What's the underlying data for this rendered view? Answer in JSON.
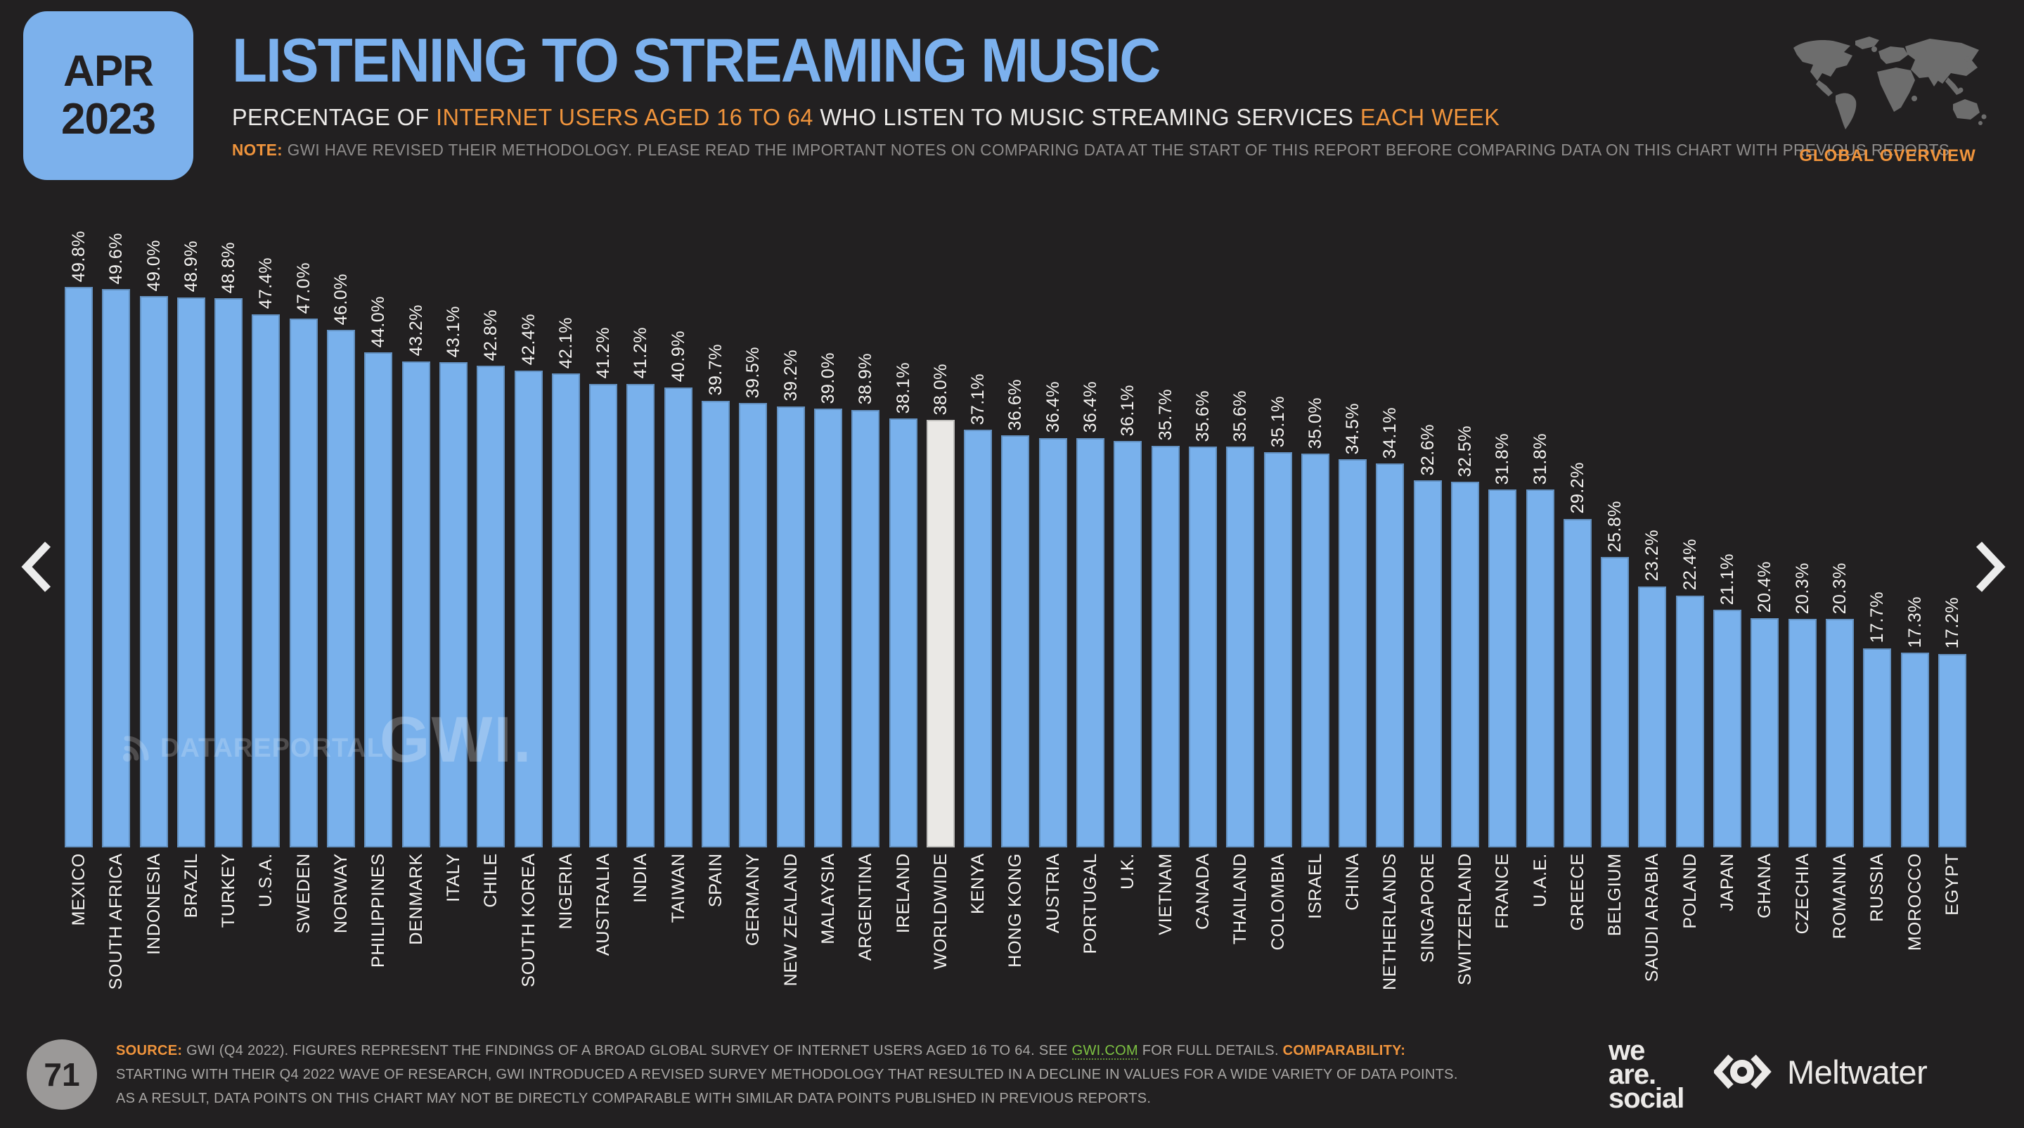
{
  "page": {
    "month_label": "APR",
    "year_label": "2023",
    "page_number": "71"
  },
  "header": {
    "title": "LISTENING TO STREAMING MUSIC",
    "subtitle": {
      "part1": "PERCENTAGE OF ",
      "highlight1": "INTERNET USERS AGED 16 TO 64",
      "part2": " WHO LISTEN TO MUSIC STREAMING SERVICES ",
      "highlight2": "EACH WEEK"
    },
    "note": {
      "label": "NOTE:",
      "text": " GWI HAVE REVISED THEIR METHODOLOGY. PLEASE READ THE IMPORTANT NOTES ON COMPARING DATA AT THE START OF THIS REPORT BEFORE COMPARING DATA ON THIS CHART WITH PREVIOUS REPORTS"
    },
    "map_caption": "GLOBAL OVERVIEW"
  },
  "chart_data": {
    "type": "bar",
    "title": "LISTENING TO STREAMING MUSIC",
    "subtitle": "PERCENTAGE OF INTERNET USERS AGED 16 TO 64 WHO LISTEN TO MUSIC STREAMING SERVICES EACH WEEK",
    "unit": "%",
    "ylim": [
      0,
      50
    ],
    "grid": false,
    "legend": "none",
    "bar_color": "#79B1EC",
    "highlight_bar_color": "#EAE8E5",
    "highlight_category": "WORLDWIDE",
    "categories": [
      "MEXICO",
      "SOUTH AFRICA",
      "INDONESIA",
      "BRAZIL",
      "TURKEY",
      "U.S.A.",
      "SWEDEN",
      "NORWAY",
      "PHILIPPINES",
      "DENMARK",
      "ITALY",
      "CHILE",
      "SOUTH KOREA",
      "NIGERIA",
      "AUSTRALIA",
      "INDIA",
      "TAIWAN",
      "SPAIN",
      "GERMANY",
      "NEW ZEALAND",
      "MALAYSIA",
      "ARGENTINA",
      "IRELAND",
      "WORLDWIDE",
      "KENYA",
      "HONG KONG",
      "AUSTRIA",
      "PORTUGAL",
      "U.K.",
      "VIETNAM",
      "CANADA",
      "THAILAND",
      "COLOMBIA",
      "ISRAEL",
      "CHINA",
      "NETHERLANDS",
      "SINGAPORE",
      "SWITZERLAND",
      "FRANCE",
      "U.A.E.",
      "GREECE",
      "BELGIUM",
      "SAUDI ARABIA",
      "POLAND",
      "JAPAN",
      "GHANA",
      "CZECHIA",
      "ROMANIA",
      "RUSSIA",
      "MOROCCO",
      "EGYPT"
    ],
    "values": [
      49.8,
      49.6,
      49.0,
      48.9,
      48.8,
      47.4,
      47.0,
      46.0,
      44.0,
      43.2,
      43.1,
      42.8,
      42.4,
      42.1,
      41.2,
      41.2,
      40.9,
      39.7,
      39.5,
      39.2,
      39.0,
      38.9,
      38.1,
      38.0,
      37.1,
      36.6,
      36.4,
      36.4,
      36.1,
      35.7,
      35.6,
      35.6,
      35.1,
      35.0,
      34.5,
      34.1,
      32.6,
      32.5,
      31.8,
      31.8,
      29.2,
      25.8,
      23.2,
      22.4,
      21.1,
      20.4,
      20.3,
      20.3,
      17.7,
      17.3,
      17.2
    ]
  },
  "watermarks": {
    "brand": "DATAREPORTAL",
    "gwi": "GWI."
  },
  "footer": {
    "source_label": "SOURCE:",
    "source_text_1": " GWI (Q4 2022). FIGURES REPRESENT THE FINDINGS OF A BROAD GLOBAL SURVEY OF INTERNET USERS AGED 16 TO 64. SEE ",
    "source_link": "GWI.COM",
    "source_text_2": " FOR FULL DETAILS. ",
    "comparability_label": "COMPARABILITY:",
    "comparability_text": " STARTING WITH THEIR Q4 2022 WAVE OF RESEARCH, GWI INTRODUCED A REVISED SURVEY METHODOLOGY THAT RESULTED IN A DECLINE IN VALUES FOR A WIDE VARIETY OF DATA POINTS. AS A RESULT, DATA POINTS ON THIS CHART MAY NOT BE DIRECTLY COMPARABLE WITH SIMILAR DATA POINTS PUBLISHED IN PREVIOUS REPORTS."
  },
  "logos": {
    "we_are_social": [
      "we",
      "are.",
      "social"
    ],
    "meltwater": "Meltwater"
  },
  "colors": {
    "background": "#222021",
    "accent_blue": "#7CB1EC",
    "accent_orange": "#F0943C",
    "link_green": "#7DC242",
    "bar": "#79B1EC",
    "highlight_bar": "#EAE8E5"
  }
}
